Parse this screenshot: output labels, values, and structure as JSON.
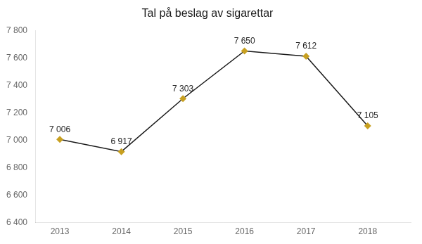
{
  "chart_data": {
    "type": "line",
    "title": "Tal på beslag av sigarettar",
    "x": [
      2013,
      2014,
      2015,
      2016,
      2017,
      2018
    ],
    "values": [
      7006,
      6917,
      7303,
      7650,
      7612,
      7105
    ],
    "value_labels": [
      "7 006",
      "6 917",
      "7 303",
      "7 650",
      "7 612",
      "7 105"
    ],
    "data_labels": true,
    "color": "#1a1a1a",
    "colors": [
      "#c8a020",
      "#c8a020",
      "#c8a020",
      "#c8a020",
      "#c8a020",
      "#c8a020"
    ],
    "marker": "diamond",
    "xlim": [
      2012.6,
      2018.7
    ],
    "xticks": [
      2013,
      2014,
      2015,
      2016,
      2017,
      2018
    ],
    "ylim": [
      6400,
      7800
    ],
    "yticks": [
      {
        "value": 6400,
        "label": "6 400"
      },
      {
        "value": 6600,
        "label": "6 600"
      },
      {
        "value": 6800,
        "label": "6 800"
      },
      {
        "value": 7000,
        "label": "7 000"
      },
      {
        "value": 7200,
        "label": "7 200"
      },
      {
        "value": 7400,
        "label": "7 400"
      },
      {
        "value": 7600,
        "label": "7 600"
      },
      {
        "value": 7800,
        "label": "7 800"
      }
    ],
    "grid": false
  }
}
